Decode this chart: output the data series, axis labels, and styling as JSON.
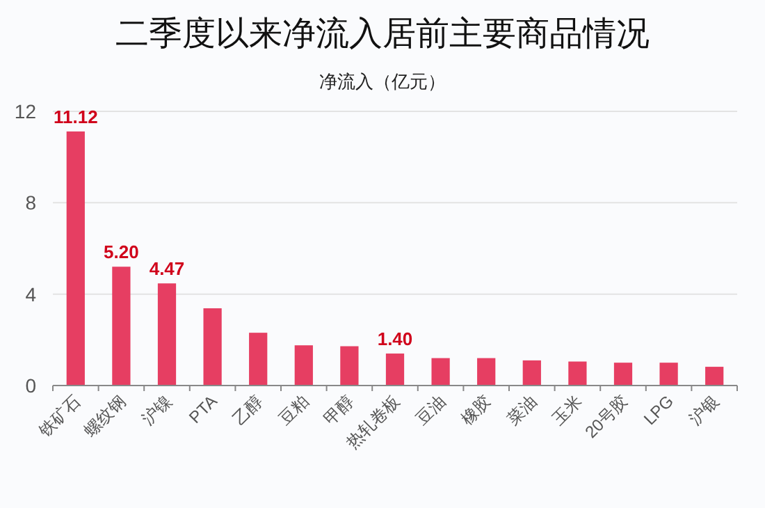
{
  "chart_data": {
    "type": "bar",
    "title": "二季度以来净流入居前主要商品情况",
    "subtitle": "净流入（亿元）",
    "categories": [
      "铁矿石",
      "螺纹钢",
      "沪镍",
      "PTA",
      "乙醇",
      "豆粕",
      "甲醇",
      "热轧卷板",
      "豆油",
      "橡胶",
      "菜油",
      "玉米",
      "20号胶",
      "LPG",
      "沪银"
    ],
    "values": [
      11.12,
      5.2,
      4.47,
      3.38,
      2.31,
      1.76,
      1.72,
      1.4,
      1.2,
      1.2,
      1.1,
      1.05,
      1.0,
      1.0,
      0.82
    ],
    "value_labels": [
      "11.12",
      "5.20",
      "4.47",
      null,
      null,
      null,
      null,
      "1.40",
      null,
      null,
      null,
      null,
      null,
      null,
      null
    ],
    "color": "#e63e62",
    "ylim": [
      0,
      12
    ],
    "yticks": [
      0,
      4,
      8,
      12
    ],
    "grid": "y"
  }
}
